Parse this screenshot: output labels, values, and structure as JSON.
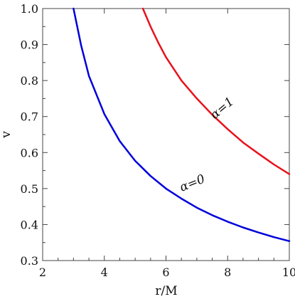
{
  "chart_data": {
    "type": "line",
    "title": "",
    "xlabel": "r/M",
    "ylabel": "v",
    "xlim": [
      2,
      10
    ],
    "ylim": [
      0.3,
      1.0
    ],
    "x_ticks": [
      "2",
      "4",
      "6",
      "8",
      "10"
    ],
    "y_ticks": [
      "0.3",
      "0.4",
      "0.5",
      "0.6",
      "0.7",
      "0.8",
      "0.9",
      "1.0"
    ],
    "grid": false,
    "series": [
      {
        "name": "α=0",
        "color": "#0000dd",
        "x": [
          3.0,
          3.25,
          3.5,
          4.0,
          4.5,
          5.0,
          5.5,
          6.0,
          6.5,
          7.0,
          7.5,
          8.0,
          8.5,
          9.0,
          9.5,
          10.0
        ],
        "y": [
          1.0,
          0.897,
          0.813,
          0.707,
          0.632,
          0.577,
          0.535,
          0.5,
          0.472,
          0.447,
          0.426,
          0.408,
          0.392,
          0.378,
          0.365,
          0.354
        ]
      },
      {
        "name": "α=1",
        "color": "#e8121b",
        "x": [
          5.25,
          5.5,
          5.75,
          6.0,
          6.5,
          7.0,
          7.5,
          8.0,
          8.5,
          9.0,
          9.5,
          10.0
        ],
        "y": [
          1.0,
          0.95,
          0.905,
          0.865,
          0.8,
          0.75,
          0.705,
          0.665,
          0.628,
          0.597,
          0.567,
          0.54
        ]
      }
    ]
  }
}
